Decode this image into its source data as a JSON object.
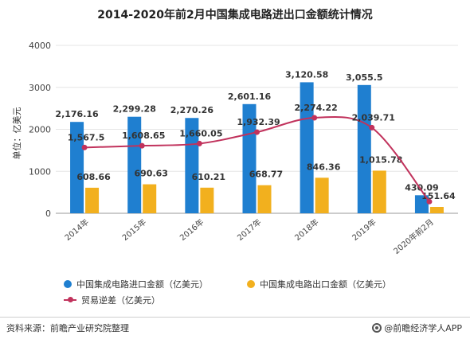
{
  "page": {
    "title": "2014-2020年前2月中国集成电路进出口金额统计情况"
  },
  "footer": {
    "source": "资料来源：前瞻产业研究院整理",
    "brand": "@前瞻经济学人APP"
  },
  "colors": {
    "import": "#1f7fd0",
    "export": "#f2b01e",
    "balance": "#c1325c",
    "axis": "#888888",
    "grid": "#e6e6e6",
    "text": "#333333"
  },
  "chart_data": {
    "type": "bar",
    "title": "2014-2020年前2月中国集成电路进出口金额统计情况",
    "ylabel": "单位：亿美元",
    "xlabel": "",
    "ylim": [
      0,
      4000
    ],
    "yticks": [
      0,
      1000,
      2000,
      3000,
      4000
    ],
    "grid": true,
    "legend_position": "bottom",
    "categories": [
      "2014年",
      "2015年",
      "2016年",
      "2017年",
      "2018年",
      "2019年",
      "2020年前2月"
    ],
    "series": [
      {
        "name": "中国集成电路进口金额（亿美元）",
        "kind": "bar",
        "values": [
          2176.16,
          2299.28,
          2270.26,
          2601.16,
          3120.58,
          3055.5,
          430.09
        ],
        "labels": [
          "2,176.16",
          "2,299.28",
          "2,270.26",
          "2,601.16",
          "3,120.58",
          "3,055.5",
          "430.09"
        ]
      },
      {
        "name": "中国集成电路出口金额（亿美元）",
        "kind": "bar",
        "values": [
          608.66,
          690.63,
          610.21,
          668.77,
          846.36,
          1015.78,
          151.64
        ],
        "labels": [
          "608.66",
          "690.63",
          "610.21",
          "668.77",
          "846.36",
          "1,015.78",
          "151.64"
        ]
      },
      {
        "name": "贸易逆差（亿美元）",
        "kind": "line",
        "values": [
          1567.5,
          1608.65,
          1660.05,
          1932.39,
          2274.22,
          2039.71,
          278.45
        ],
        "labels": [
          "1,567.5",
          "1,608.65",
          "1,660.05",
          "1,932.39",
          "2,274.22",
          "2,039.71",
          ""
        ]
      }
    ]
  }
}
